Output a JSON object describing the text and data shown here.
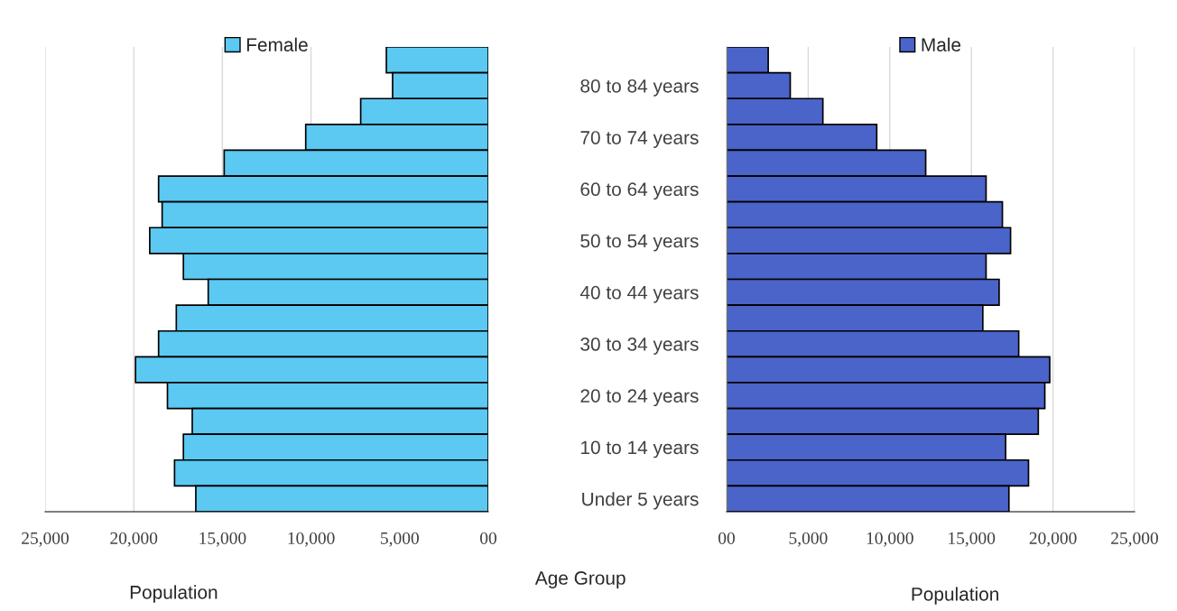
{
  "chart_data": [
    {
      "type": "bar",
      "orientation": "horizontal",
      "categories": [
        null,
        null,
        null,
        null,
        null,
        null,
        null,
        null,
        null,
        null,
        null,
        null,
        null,
        null,
        null,
        null,
        null,
        null
      ],
      "series": [
        {
          "name": "Female",
          "color": "#5bc9f1",
          "values": [
            5750,
            5400,
            7200,
            10300,
            14900,
            18600,
            18400,
            19100,
            17200,
            15800,
            17600,
            18600,
            19900,
            18100,
            16700,
            17200,
            17700,
            16500
          ]
        }
      ],
      "xlim": [
        25000,
        0
      ],
      "xticks": [
        {
          "value": 25000,
          "label": "25,000"
        },
        {
          "value": 20000,
          "label": "20,000"
        },
        {
          "value": 15000,
          "label": "15,000"
        },
        {
          "value": 10000,
          "label": "10,000"
        },
        {
          "value": 5000,
          "label": "5,000"
        },
        {
          "value": 0,
          "label": "00"
        }
      ],
      "xlabel": "Population",
      "legend": "top",
      "grid": "x",
      "tick_labels": "x"
    },
    {
      "type": "bar",
      "orientation": "horizontal",
      "categories": [
        null,
        "80 to 84 years",
        null,
        "70 to 74 years",
        null,
        "60 to 64 years",
        null,
        "50 to 54 years",
        null,
        "40 to 44 years",
        null,
        "30 to 34 years",
        null,
        "20 to 24 years",
        null,
        "10 to 14 years",
        null,
        "Under 5 years"
      ],
      "series": [
        {
          "name": "Male",
          "color": "#4a64c9",
          "values": [
            2550,
            3900,
            5900,
            9200,
            12200,
            15900,
            16900,
            17400,
            15900,
            16700,
            15700,
            17900,
            19800,
            19500,
            19100,
            17100,
            18500,
            17300
          ]
        }
      ],
      "xlim": [
        0,
        25000
      ],
      "xticks": [
        {
          "value": 0,
          "label": "00"
        },
        {
          "value": 5000,
          "label": "5,000"
        },
        {
          "value": 10000,
          "label": "10,000"
        },
        {
          "value": 15000,
          "label": "15,000"
        },
        {
          "value": 20000,
          "label": "20,000"
        },
        {
          "value": 25000,
          "label": "25,000"
        }
      ],
      "xlabel": "Population",
      "ylabel": "Age Group",
      "legend": "top",
      "grid": "x"
    }
  ]
}
